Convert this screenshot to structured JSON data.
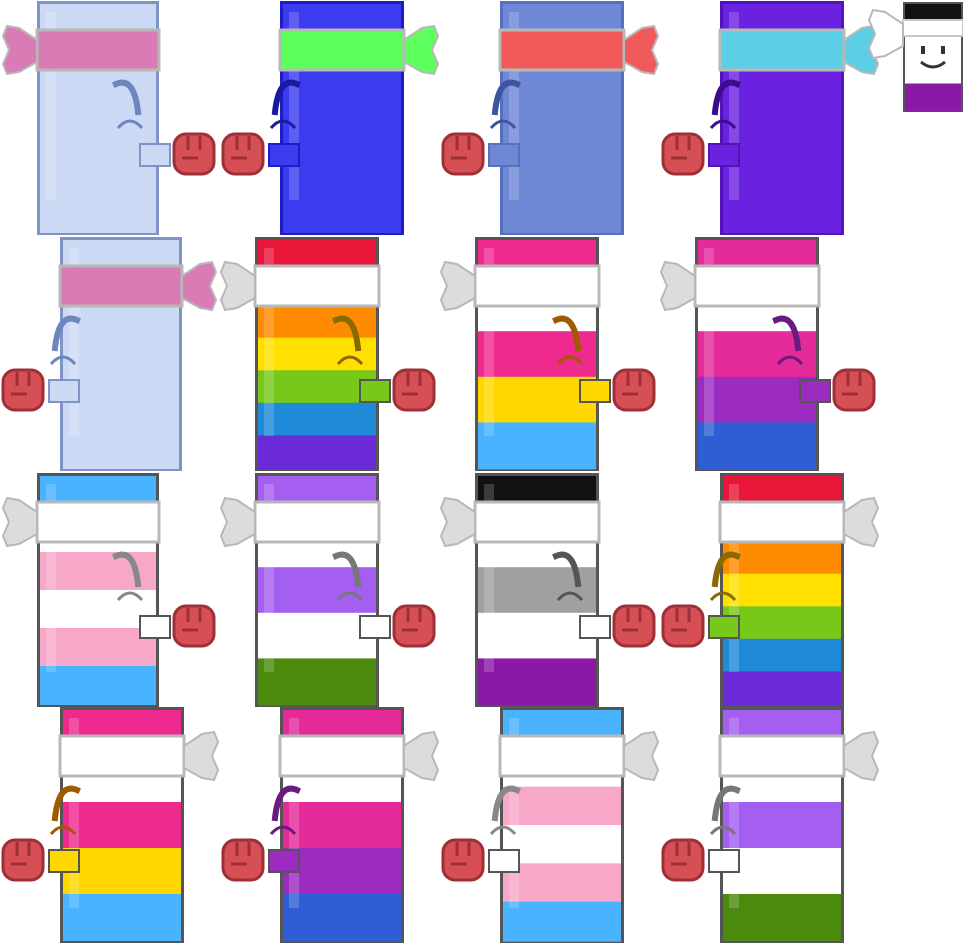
{
  "colors": {
    "glove": "#d64f55",
    "glove_dark": "#9e2f36",
    "eye": "#4a5f9a",
    "band_default": "#dcdcdc"
  },
  "sprites": [
    {
      "name": "sprite-lightblue-headband",
      "stripes": [
        "#ccd9f5"
      ],
      "frame": "#7d94c4",
      "band": "#d97cb5",
      "band_tail": "#d97cb5",
      "tail": "left",
      "glove_side": "right",
      "eye_color": "#6e86bf"
    },
    {
      "name": "sprite-blue-headband",
      "stripes": [
        "#3b3bf0"
      ],
      "frame": "#1e1ec4",
      "band": "#5cff5c",
      "band_tail": "#5cff5c",
      "tail": "right",
      "glove_side": "left",
      "eye_color": "#1a1aa0"
    },
    {
      "name": "sprite-periwinkle-headband",
      "stripes": [
        "#6e88d6"
      ],
      "frame": "#5670c0",
      "band": "#f05a5a",
      "band_tail": "#f05a5a",
      "tail": "right",
      "glove_side": "left",
      "eye_color": "#3f55a0"
    },
    {
      "name": "sprite-purple-headband",
      "stripes": [
        "#6b22e0"
      ],
      "frame": "#5214b8",
      "band": "#5ccfe6",
      "band_tail": "#5ccfe6",
      "tail": "right",
      "glove_side": "left",
      "eye_color": "#3c0d8a"
    },
    {
      "name": "sprite-lightblue-headband-alt",
      "stripes": [
        "#ccd9f5"
      ],
      "frame": "#7d94c4",
      "band": "#d97cb5",
      "band_tail": "#d97cb5",
      "tail": "right",
      "glove_side": "left",
      "eye_color": "#6e86bf"
    },
    {
      "name": "sprite-rainbow-pride",
      "stripes": [
        "#e8173a",
        "#ffffff",
        "#ff8c00",
        "#ffe000",
        "#78c81a",
        "#1e8ad8",
        "#6a2ad8"
      ],
      "frame": "#555555",
      "band": "#ffffff",
      "band_tail": "#dcdcdc",
      "tail": "left",
      "glove_side": "right",
      "eye_color": "#8a6a00"
    },
    {
      "name": "sprite-pansexual-pride",
      "stripes": [
        "#ee2a8f",
        "#ffffff",
        "#ee2a8f",
        "#ffd800",
        "#4ab3ff"
      ],
      "frame": "#555555",
      "band": "#ffffff",
      "band_tail": "#dcdcdc",
      "tail": "left",
      "glove_side": "right",
      "eye_color": "#a05a00"
    },
    {
      "name": "sprite-bisexual-pride",
      "stripes": [
        "#e52a9a",
        "#ffffff",
        "#e52a9a",
        "#9b2cbf",
        "#2f5dd4"
      ],
      "frame": "#555555",
      "band": "#ffffff",
      "band_tail": "#dcdcdc",
      "tail": "left",
      "glove_side": "right",
      "eye_color": "#6a1a80"
    },
    {
      "name": "sprite-transgender-pride",
      "stripes": [
        "#4ab3ff",
        "#ffffff",
        "#f7a8c8",
        "#ffffff",
        "#f7a8c8",
        "#4ab3ff"
      ],
      "frame": "#555555",
      "band": "#ffffff",
      "band_tail": "#dcdcdc",
      "tail": "left",
      "glove_side": "right",
      "eye_color": "#888888"
    },
    {
      "name": "sprite-nonbinary-genderqueer-pride",
      "stripes": [
        "#a45ff0",
        "#ffffff",
        "#a45ff0",
        "#ffffff",
        "#4c8a0e"
      ],
      "frame": "#555555",
      "band": "#ffffff",
      "band_tail": "#dcdcdc",
      "tail": "left",
      "glove_side": "right",
      "eye_color": "#777777"
    },
    {
      "name": "sprite-asexual-pride",
      "stripes": [
        "#111111",
        "#ffffff",
        "#a0a0a0",
        "#ffffff",
        "#8a1aa6"
      ],
      "frame": "#555555",
      "band": "#ffffff",
      "band_tail": "#dcdcdc",
      "tail": "left",
      "glove_side": "right",
      "eye_color": "#555555"
    },
    {
      "name": "sprite-rainbow-pride-alt",
      "stripes": [
        "#e8173a",
        "#ffffff",
        "#ff8c00",
        "#ffe000",
        "#78c81a",
        "#1e8ad8",
        "#6a2ad8"
      ],
      "frame": "#555555",
      "band": "#ffffff",
      "band_tail": "#dcdcdc",
      "tail": "right",
      "glove_side": "left",
      "eye_color": "#8a6a00"
    },
    {
      "name": "sprite-pansexual-pride-alt",
      "stripes": [
        "#ee2a8f",
        "#ffffff",
        "#ee2a8f",
        "#ffd800",
        "#4ab3ff"
      ],
      "frame": "#555555",
      "band": "#ffffff",
      "band_tail": "#dcdcdc",
      "tail": "right",
      "glove_side": "left",
      "eye_color": "#a05a00"
    },
    {
      "name": "sprite-bisexual-pride-alt",
      "stripes": [
        "#e52a9a",
        "#ffffff",
        "#e52a9a",
        "#9b2cbf",
        "#2f5dd4"
      ],
      "frame": "#555555",
      "band": "#ffffff",
      "band_tail": "#dcdcdc",
      "tail": "right",
      "glove_side": "left",
      "eye_color": "#6a1a80"
    },
    {
      "name": "sprite-transgender-pride-alt",
      "stripes": [
        "#4ab3ff",
        "#ffffff",
        "#f7a8c8",
        "#ffffff",
        "#f7a8c8",
        "#4ab3ff"
      ],
      "frame": "#555555",
      "band": "#ffffff",
      "band_tail": "#dcdcdc",
      "tail": "right",
      "glove_side": "left",
      "eye_color": "#888888"
    },
    {
      "name": "sprite-nonbinary-genderqueer-pride-alt",
      "stripes": [
        "#a45ff0",
        "#ffffff",
        "#a45ff0",
        "#ffffff",
        "#4c8a0e"
      ],
      "frame": "#555555",
      "band": "#ffffff",
      "band_tail": "#dcdcdc",
      "tail": "right",
      "glove_side": "left",
      "eye_color": "#777777"
    }
  ],
  "mini_sprite": {
    "name": "mini-asexual-face-icon",
    "stripes": [
      "#111111",
      "#ffffff",
      "#ffffff",
      "#8a1aa6"
    ]
  }
}
